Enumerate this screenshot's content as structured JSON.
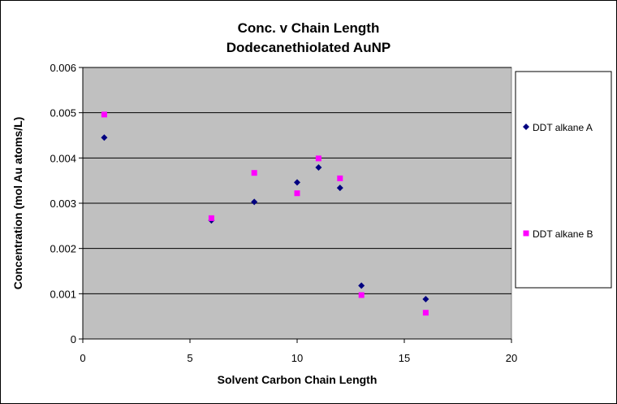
{
  "chart_data": {
    "type": "scatter",
    "title": "Conc. v Chain Length",
    "subtitle": "Dodecanethiolated AuNP",
    "xlabel": "Solvent Carbon Chain Length",
    "ylabel": "Concentration (mol Au atoms/L)",
    "xlim": [
      0,
      20
    ],
    "ylim": [
      0,
      0.006
    ],
    "x_ticks": [
      "0",
      "5",
      "10",
      "15",
      "20"
    ],
    "y_ticks": [
      "0",
      "0.001",
      "0.002",
      "0.003",
      "0.004",
      "0.005",
      "0.006"
    ],
    "grid": true,
    "legend_position": "right",
    "plot_background": "#C0C0C0",
    "series": [
      {
        "name": "DDT alkane A",
        "marker": "diamond",
        "color": "#000080",
        "x": [
          1,
          6,
          8,
          10,
          11,
          12,
          13,
          16
        ],
        "y": [
          0.00445,
          0.00262,
          0.00303,
          0.00346,
          0.00379,
          0.00334,
          0.00118,
          0.00088
        ]
      },
      {
        "name": "DDT alkane B",
        "marker": "square",
        "color": "#FF00FF",
        "x": [
          1,
          6,
          8,
          10,
          11,
          12,
          13,
          16
        ],
        "y": [
          0.00496,
          0.00267,
          0.00367,
          0.00322,
          0.00399,
          0.00355,
          0.00097,
          0.00058
        ]
      }
    ]
  }
}
